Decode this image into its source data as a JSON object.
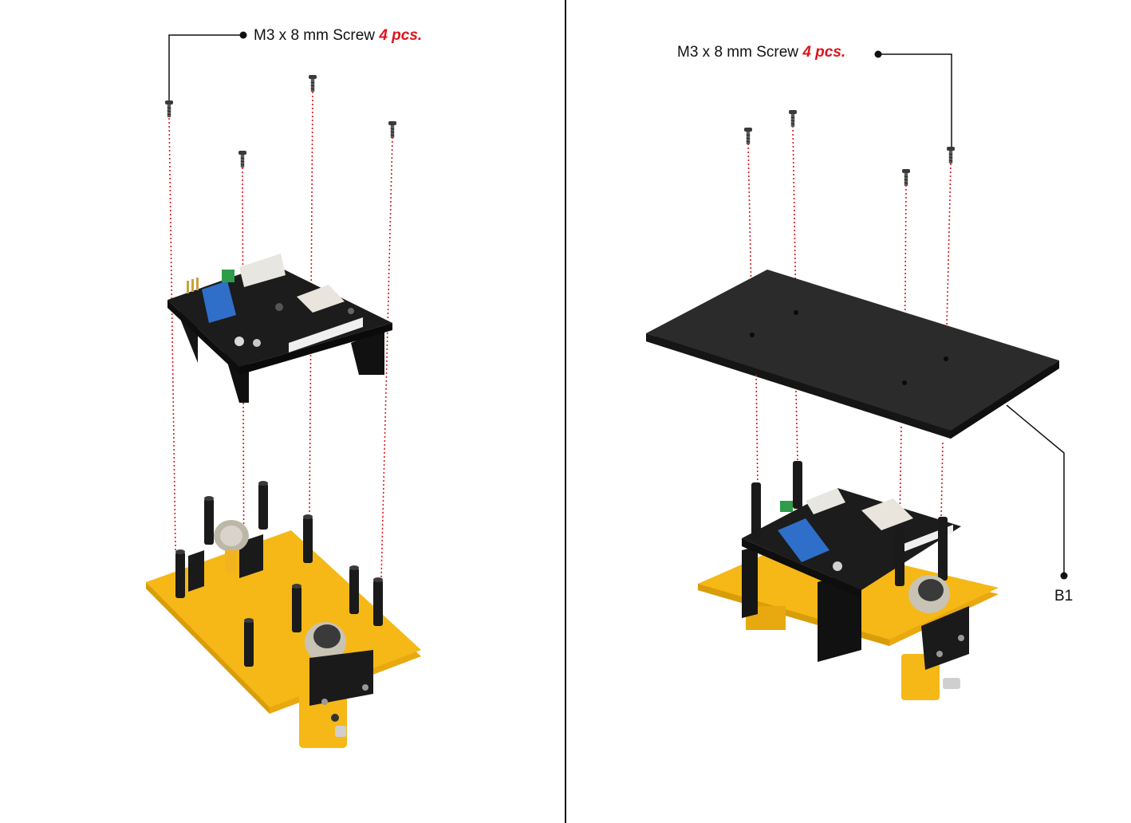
{
  "left_step": {
    "screw_label": "M3 x 8 mm Screw",
    "screw_quantity": "4 pcs."
  },
  "right_step": {
    "screw_label": "M3 x 8 mm Screw",
    "screw_quantity": "4 pcs.",
    "plate_label": "B1"
  },
  "colors": {
    "guide_line": "#e0141b",
    "quantity_text": "#e0141b",
    "chassis_plate": "#f5b816",
    "pcb": "#1b1b1b",
    "top_plate": "#2b2b2b",
    "divider": "#111111"
  }
}
